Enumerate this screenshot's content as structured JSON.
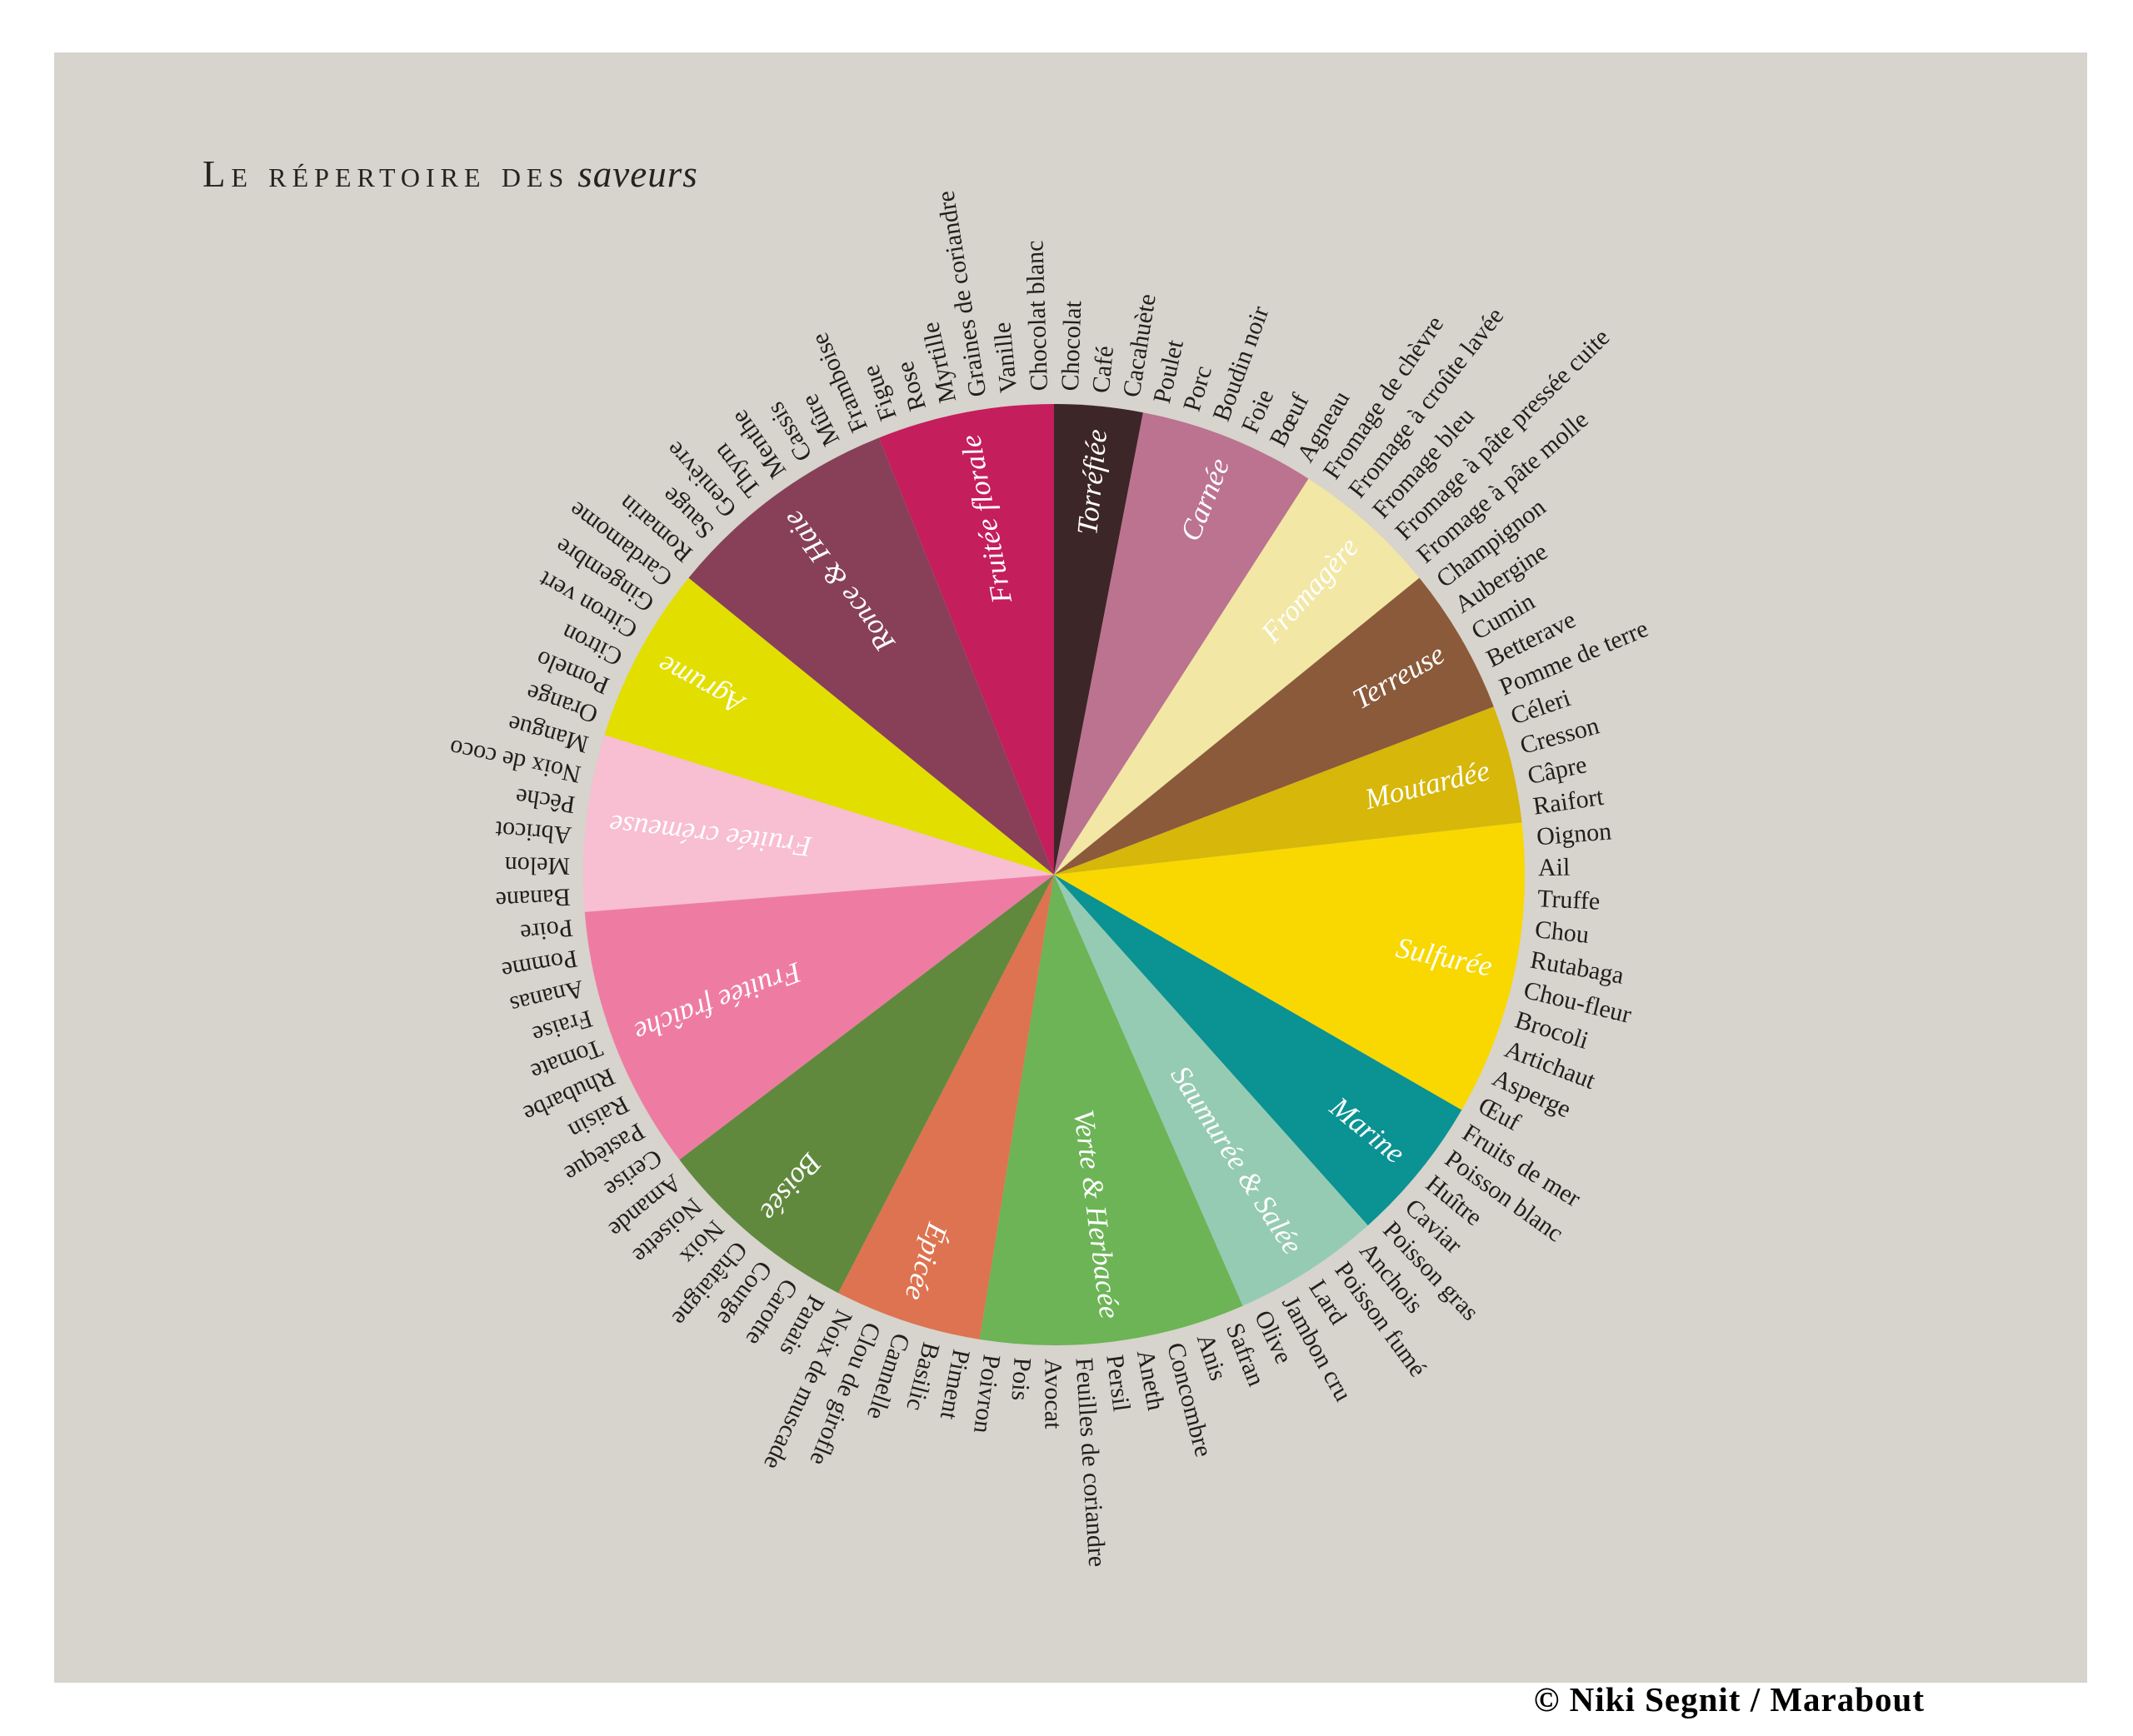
{
  "title": {
    "prefix": "Le répertoire des",
    "emphasis": "saveurs"
  },
  "credit": "© Niki Segnit / Marabout",
  "colors": {
    "page_background": "#ffffff",
    "panel_background": "#d7d3cd",
    "title_text": "#26231f",
    "ingredient_text": "#211e1b",
    "category_text": "#ffffff"
  },
  "chart_data": {
    "type": "pie",
    "title": "Le répertoire des saveurs",
    "description": "Roue des saveurs : 16 familles de goûts réparties en 99 ingrédients, chaque ingrédient occupant un secteur égal (360/99 degrés), en partant de midi dans le sens horaire.",
    "total_items": 99,
    "start_angle_deg": 0,
    "direction": "clockwise",
    "slice_per_item_deg": 3.6364,
    "legend_position": "inside-sectors",
    "categories": [
      {
        "name": "Torréfiée",
        "color": "#3d2627",
        "items": [
          "Chocolat",
          "Café",
          "Cacahuète"
        ]
      },
      {
        "name": "Carnée",
        "color": "#bb7390",
        "items": [
          "Poulet",
          "Porc",
          "Boudin noir",
          "Foie",
          "Bœuf",
          "Agneau"
        ]
      },
      {
        "name": "Fromagère",
        "color": "#f2e7a4",
        "items": [
          "Fromage de chèvre",
          "Fromage à croûte lavée",
          "Fromage bleu",
          "Fromage à pâte pressée cuite",
          "Fromage à pâte molle"
        ]
      },
      {
        "name": "Terreuse",
        "color": "#8b5a3a",
        "items": [
          "Champignon",
          "Aubergine",
          "Cumin",
          "Betterave",
          "Pomme de terre"
        ]
      },
      {
        "name": "Moutardée",
        "color": "#d6b70a",
        "items": [
          "Céleri",
          "Cresson",
          "Câpre",
          "Raifort"
        ]
      },
      {
        "name": "Sulfurée",
        "color": "#f8d800",
        "items": [
          "Oignon",
          "Ail",
          "Truffe",
          "Chou",
          "Rutabaga",
          "Chou-fleur",
          "Brocoli",
          "Artichaut",
          "Asperge",
          "Œuf"
        ]
      },
      {
        "name": "Marine",
        "color": "#0b9293",
        "items": [
          "Fruits de mer",
          "Poisson blanc",
          "Huître",
          "Caviar",
          "Poisson gras"
        ]
      },
      {
        "name": "Saumurée & Salée",
        "color": "#95cbb3",
        "items": [
          "Anchois",
          "Poisson fumé",
          "Lard",
          "Jambon cru",
          "Olive"
        ]
      },
      {
        "name": "Verte & Herbacée",
        "color": "#6cb455",
        "items": [
          "Safran",
          "Anis",
          "Concombre",
          "Aneth",
          "Persil",
          "Feuilles de coriandre",
          "Avocat",
          "Pois",
          "Poivron"
        ]
      },
      {
        "name": "Épicée",
        "color": "#dd7350",
        "items": [
          "Piment",
          "Basilic",
          "Cannelle",
          "Clou de girofle",
          "Noix de muscade"
        ]
      },
      {
        "name": "Boisée",
        "color": "#60893e",
        "items": [
          "Panais",
          "Carotte",
          "Courge",
          "Châtaigne",
          "Noix",
          "Noisette",
          "Amande"
        ]
      },
      {
        "name": "Fruitée fraîche",
        "color": "#ee7ca2",
        "items": [
          "Cerise",
          "Pastèque",
          "Raisin",
          "Rhubarbe",
          "Tomate",
          "Fraise",
          "Ananas",
          "Pomme",
          "Poire"
        ]
      },
      {
        "name": "Fruitée crémeuse",
        "color": "#f8bed1",
        "items": [
          "Banane",
          "Melon",
          "Abricot",
          "Pêche",
          "Noix de coco",
          "Mangue"
        ]
      },
      {
        "name": "Agrume",
        "color": "#e2de00",
        "items": [
          "Orange",
          "Pomelo",
          "Citron",
          "Citron vert",
          "Gingembre",
          "Cardamome"
        ]
      },
      {
        "name": "Ronce & Haie",
        "color": "#874058",
        "items": [
          "Romarin",
          "Sauge",
          "Genièvre",
          "Thym",
          "Menthe",
          "Cassis",
          "Mûre",
          "Framboise"
        ]
      },
      {
        "name": "Fruitée florale",
        "color": "#c41e5c",
        "items": [
          "Figue",
          "Rose",
          "Myrtille",
          "Graines de coriandre",
          "Vanille",
          "Chocolat blanc"
        ]
      }
    ]
  }
}
